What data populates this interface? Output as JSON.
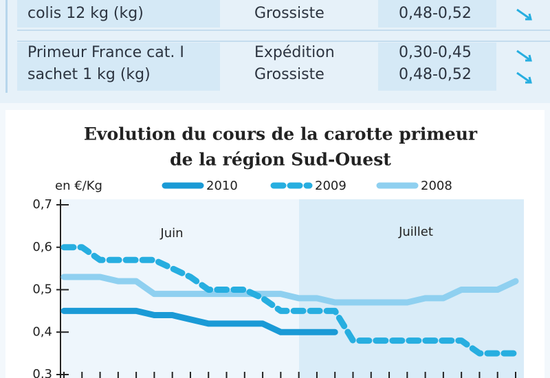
{
  "table": {
    "rows": [
      {
        "label": [
          "colis 12 kg (kg)"
        ],
        "stages": [
          "Grossiste"
        ],
        "prices": [
          "0,48-0,52"
        ]
      },
      {
        "label": [
          "Primeur France cat. I",
          "sachet 1 kg (kg)"
        ],
        "stages": [
          "Expédition",
          "Grossiste"
        ],
        "prices": [
          "0,30-0,45",
          "0,48-0,52"
        ]
      }
    ]
  },
  "chart_data": {
    "type": "line",
    "title": "Evolution du cours de la carotte primeur",
    "subtitle": "de la région Sud-Ouest",
    "y_label": "en €/Kg",
    "annotations": [
      "Juin",
      "Juillet"
    ],
    "x": [
      0,
      1,
      2,
      3,
      4,
      5,
      6,
      7,
      8,
      9,
      10,
      11,
      12,
      13,
      14,
      15,
      16,
      17,
      18,
      19,
      20,
      21,
      22,
      23,
      24,
      25
    ],
    "xlim": [
      0,
      25
    ],
    "ylim": [
      0.3,
      0.7
    ],
    "yticks": [
      {
        "value": 0.3,
        "label": "0,3"
      },
      {
        "value": 0.4,
        "label": "0,4"
      },
      {
        "value": 0.5,
        "label": "0,5"
      },
      {
        "value": 0.6,
        "label": "0,6"
      },
      {
        "value": 0.7,
        "label": "0,7"
      }
    ],
    "series": [
      {
        "name": "2010",
        "color": "#1a9ad6",
        "dashed": false,
        "values": [
          0.45,
          0.45,
          0.45,
          0.45,
          0.45,
          0.44,
          0.44,
          0.43,
          0.42,
          0.42,
          0.42,
          0.42,
          0.4,
          0.4,
          0.4,
          0.4,
          null,
          null,
          null,
          null,
          null,
          null,
          null,
          null,
          null,
          null
        ]
      },
      {
        "name": "2009",
        "color": "#27aee0",
        "dashed": true,
        "values": [
          0.6,
          0.6,
          0.57,
          0.57,
          0.57,
          0.57,
          0.55,
          0.53,
          0.5,
          0.5,
          0.5,
          0.48,
          0.45,
          0.45,
          0.45,
          0.45,
          0.38,
          0.38,
          0.38,
          0.38,
          0.38,
          0.38,
          0.38,
          0.35,
          0.35,
          0.35
        ]
      },
      {
        "name": "2008",
        "color": "#8fd0f0",
        "dashed": false,
        "values": [
          0.53,
          0.53,
          0.53,
          0.52,
          0.52,
          0.49,
          0.49,
          0.49,
          0.49,
          0.49,
          0.49,
          0.49,
          0.49,
          0.48,
          0.48,
          0.47,
          0.47,
          0.47,
          0.47,
          0.47,
          0.48,
          0.48,
          0.5,
          0.5,
          0.5,
          0.52
        ]
      }
    ]
  }
}
